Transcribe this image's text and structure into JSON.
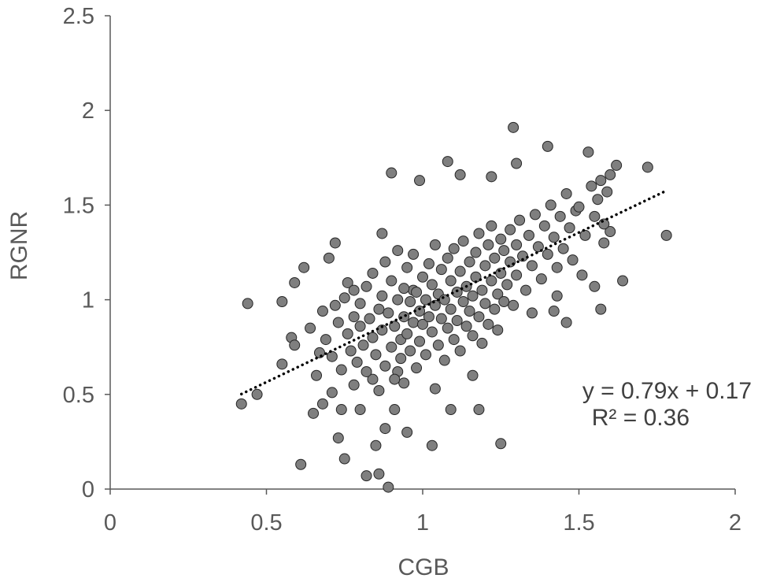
{
  "chart_data": {
    "type": "scatter",
    "title": "",
    "xlabel": "CGB",
    "ylabel": "RGNR",
    "xlim": [
      0,
      2
    ],
    "ylim": [
      0,
      2.5
    ],
    "xticks": [
      "0",
      "0.5",
      "1",
      "1.5",
      "2"
    ],
    "yticks": [
      "0",
      "0.5",
      "1",
      "1.5",
      "2",
      "2.5"
    ],
    "grid": false,
    "legend": "none",
    "trendline": {
      "slope": 0.79,
      "intercept": 0.17,
      "x_range": [
        0.42,
        1.78
      ],
      "style": "dotted",
      "equation": "y = 0.79x + 0.17",
      "r2": "R² = 0.36"
    },
    "marker_color": "#7f7f7f",
    "marker_edge": "#262626",
    "series": [
      {
        "points": [
          [
            0.42,
            0.45
          ],
          [
            0.44,
            0.98
          ],
          [
            0.47,
            0.5
          ],
          [
            0.55,
            0.99
          ],
          [
            0.55,
            0.66
          ],
          [
            0.58,
            0.8
          ],
          [
            0.59,
            0.76
          ],
          [
            0.59,
            1.09
          ],
          [
            0.61,
            0.13
          ],
          [
            0.62,
            1.17
          ],
          [
            0.65,
            0.4
          ],
          [
            0.67,
            0.72
          ],
          [
            0.68,
            0.45
          ],
          [
            0.7,
            1.22
          ],
          [
            0.71,
            0.51
          ],
          [
            0.72,
            1.3
          ],
          [
            0.73,
            0.27
          ],
          [
            0.74,
            0.42
          ],
          [
            0.75,
            0.16
          ],
          [
            0.76,
            1.09
          ],
          [
            0.78,
            0.55
          ],
          [
            0.8,
            0.42
          ],
          [
            0.82,
            0.07
          ],
          [
            0.84,
            0.58
          ],
          [
            0.85,
            0.23
          ],
          [
            0.86,
            0.08
          ],
          [
            0.87,
            1.35
          ],
          [
            0.88,
            0.32
          ],
          [
            0.89,
            0.01
          ],
          [
            0.9,
            1.67
          ],
          [
            0.91,
            0.42
          ],
          [
            0.92,
            0.62
          ],
          [
            0.94,
            0.56
          ],
          [
            0.95,
            0.3
          ],
          [
            0.97,
            1.05
          ],
          [
            0.99,
            1.63
          ],
          [
            1.03,
            0.23
          ],
          [
            1.04,
            0.53
          ],
          [
            1.08,
            1.73
          ],
          [
            1.09,
            0.42
          ],
          [
            1.12,
            1.66
          ],
          [
            1.16,
            0.6
          ],
          [
            1.18,
            0.42
          ],
          [
            1.22,
            1.65
          ],
          [
            1.25,
            0.24
          ],
          [
            1.29,
            1.91
          ],
          [
            1.3,
            1.72
          ],
          [
            1.35,
            0.93
          ],
          [
            1.4,
            1.81
          ],
          [
            1.42,
            0.94
          ],
          [
            1.49,
            1.47
          ],
          [
            1.53,
            1.78
          ],
          [
            1.55,
            1.07
          ],
          [
            1.57,
            0.95
          ],
          [
            1.58,
            1.3
          ],
          [
            1.6,
            1.36
          ],
          [
            1.62,
            1.71
          ],
          [
            1.64,
            1.1
          ],
          [
            1.72,
            1.7
          ],
          [
            1.78,
            1.34
          ],
          [
            0.64,
            0.85
          ],
          [
            0.66,
            0.6
          ],
          [
            0.68,
            0.94
          ],
          [
            0.69,
            0.79
          ],
          [
            0.71,
            0.7
          ],
          [
            0.72,
            0.97
          ],
          [
            0.73,
            0.88
          ],
          [
            0.74,
            0.63
          ],
          [
            0.75,
            1.01
          ],
          [
            0.76,
            0.82
          ],
          [
            0.77,
            0.73
          ],
          [
            0.78,
            0.91
          ],
          [
            0.78,
            1.05
          ],
          [
            0.79,
            0.67
          ],
          [
            0.8,
            0.86
          ],
          [
            0.8,
            0.98
          ],
          [
            0.81,
            0.76
          ],
          [
            0.82,
            1.07
          ],
          [
            0.82,
            0.62
          ],
          [
            0.83,
            0.9
          ],
          [
            0.84,
            0.8
          ],
          [
            0.84,
            1.14
          ],
          [
            0.85,
            0.71
          ],
          [
            0.86,
            0.95
          ],
          [
            0.86,
            0.52
          ],
          [
            0.87,
            1.02
          ],
          [
            0.87,
            0.84
          ],
          [
            0.88,
            0.65
          ],
          [
            0.88,
            1.2
          ],
          [
            0.89,
            0.93
          ],
          [
            0.9,
            0.75
          ],
          [
            0.9,
            1.1
          ],
          [
            0.91,
            0.86
          ],
          [
            0.91,
            0.58
          ],
          [
            0.92,
            1.0
          ],
          [
            0.92,
            1.26
          ],
          [
            0.93,
            0.79
          ],
          [
            0.93,
            0.69
          ],
          [
            0.94,
            1.06
          ],
          [
            0.94,
            0.91
          ],
          [
            0.95,
            0.82
          ],
          [
            0.95,
            1.17
          ],
          [
            0.96,
            0.73
          ],
          [
            0.96,
            0.99
          ],
          [
            0.97,
            0.88
          ],
          [
            0.97,
            1.24
          ],
          [
            0.98,
            0.64
          ],
          [
            0.98,
            1.04
          ],
          [
            0.99,
            0.94
          ],
          [
            0.99,
            0.78
          ],
          [
            1.0,
            1.12
          ],
          [
            1.0,
            0.87
          ],
          [
            1.01,
            1.0
          ],
          [
            1.01,
            0.71
          ],
          [
            1.02,
            1.19
          ],
          [
            1.02,
            0.91
          ],
          [
            1.03,
            0.83
          ],
          [
            1.03,
            1.08
          ],
          [
            1.04,
            0.97
          ],
          [
            1.04,
            1.29
          ],
          [
            1.05,
            0.76
          ],
          [
            1.05,
            1.03
          ],
          [
            1.06,
            0.9
          ],
          [
            1.06,
            1.16
          ],
          [
            1.07,
            0.68
          ],
          [
            1.07,
            1.0
          ],
          [
            1.08,
            1.22
          ],
          [
            1.08,
            0.85
          ],
          [
            1.09,
            1.1
          ],
          [
            1.09,
            0.95
          ],
          [
            1.1,
            0.79
          ],
          [
            1.1,
            1.27
          ],
          [
            1.11,
            1.04
          ],
          [
            1.11,
            0.89
          ],
          [
            1.12,
            1.15
          ],
          [
            1.12,
            0.73
          ],
          [
            1.13,
            0.99
          ],
          [
            1.13,
            1.31
          ],
          [
            1.14,
            0.86
          ],
          [
            1.14,
            1.07
          ],
          [
            1.15,
            1.2
          ],
          [
            1.15,
            0.94
          ],
          [
            1.16,
            1.02
          ],
          [
            1.16,
            0.81
          ],
          [
            1.17,
            1.25
          ],
          [
            1.17,
            1.12
          ],
          [
            1.18,
            0.91
          ],
          [
            1.18,
            1.35
          ],
          [
            1.19,
            1.05
          ],
          [
            1.19,
            0.77
          ],
          [
            1.2,
            1.18
          ],
          [
            1.2,
            0.98
          ],
          [
            1.21,
            1.29
          ],
          [
            1.21,
            0.87
          ],
          [
            1.22,
            1.1
          ],
          [
            1.22,
            1.39
          ],
          [
            1.23,
            0.95
          ],
          [
            1.23,
            1.22
          ],
          [
            1.24,
            1.03
          ],
          [
            1.24,
            0.84
          ],
          [
            1.25,
            1.32
          ],
          [
            1.25,
            1.14
          ],
          [
            1.26,
            0.99
          ],
          [
            1.26,
            1.26
          ],
          [
            1.27,
            1.08
          ],
          [
            1.28,
            1.37
          ],
          [
            1.28,
            1.2
          ],
          [
            1.29,
            0.97
          ],
          [
            1.3,
            1.29
          ],
          [
            1.3,
            1.13
          ],
          [
            1.31,
            1.42
          ],
          [
            1.32,
            1.23
          ],
          [
            1.33,
            1.05
          ],
          [
            1.34,
            1.34
          ],
          [
            1.35,
            1.18
          ],
          [
            1.36,
            1.45
          ],
          [
            1.37,
            1.28
          ],
          [
            1.38,
            1.11
          ],
          [
            1.39,
            1.39
          ],
          [
            1.4,
            1.24
          ],
          [
            1.41,
            1.5
          ],
          [
            1.42,
            1.33
          ],
          [
            1.43,
            1.17
          ],
          [
            1.44,
            1.44
          ],
          [
            1.45,
            1.27
          ],
          [
            1.46,
            1.56
          ],
          [
            1.47,
            1.38
          ],
          [
            1.48,
            1.21
          ],
          [
            1.5,
            1.49
          ],
          [
            1.52,
            1.34
          ],
          [
            1.54,
            1.6
          ],
          [
            1.55,
            1.44
          ],
          [
            1.56,
            1.53
          ],
          [
            1.57,
            1.63
          ],
          [
            1.58,
            1.4
          ],
          [
            1.59,
            1.57
          ],
          [
            1.6,
            1.66
          ],
          [
            1.43,
            1.02
          ],
          [
            1.46,
            0.88
          ],
          [
            1.51,
            1.13
          ]
        ]
      }
    ]
  }
}
